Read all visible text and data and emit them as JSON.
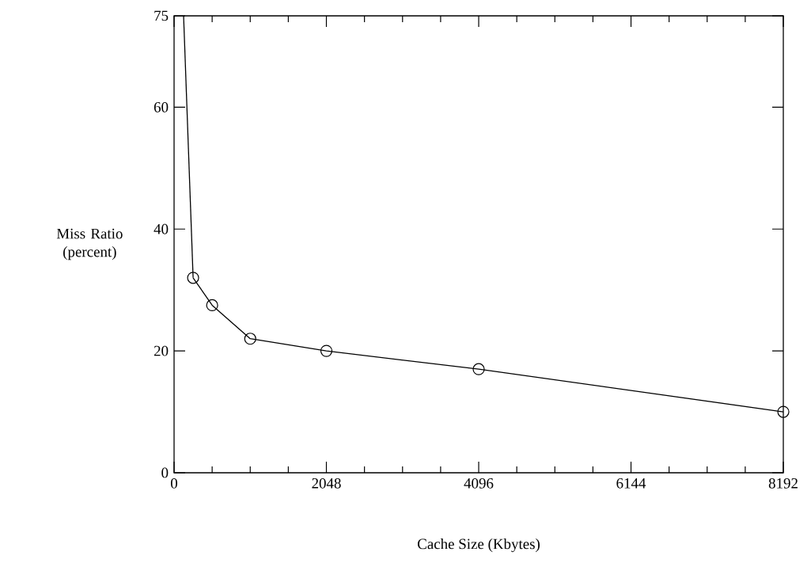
{
  "chart_data": {
    "type": "line",
    "xlabel": "Cache Size (Kbytes)",
    "ylabel": "Miss Ratio (percent)",
    "series": [
      {
        "color": "#000000",
        "x": [
          128,
          256
        ],
        "values": [
          75,
          32
        ]
      },
      {
        "color": "#000000",
        "marker": "circle",
        "x": [
          256,
          512,
          1024,
          2048,
          4096,
          8192
        ],
        "values": [
          32,
          27.5,
          22,
          20,
          17,
          10
        ]
      }
    ],
    "xlim": [
      0,
      8192
    ],
    "ylim": [
      0,
      75
    ],
    "xticks": [
      0,
      2048,
      4096,
      6144,
      8192
    ],
    "yticks": [
      0,
      20,
      40,
      60,
      75
    ],
    "grid": false,
    "line_style": "solid"
  }
}
